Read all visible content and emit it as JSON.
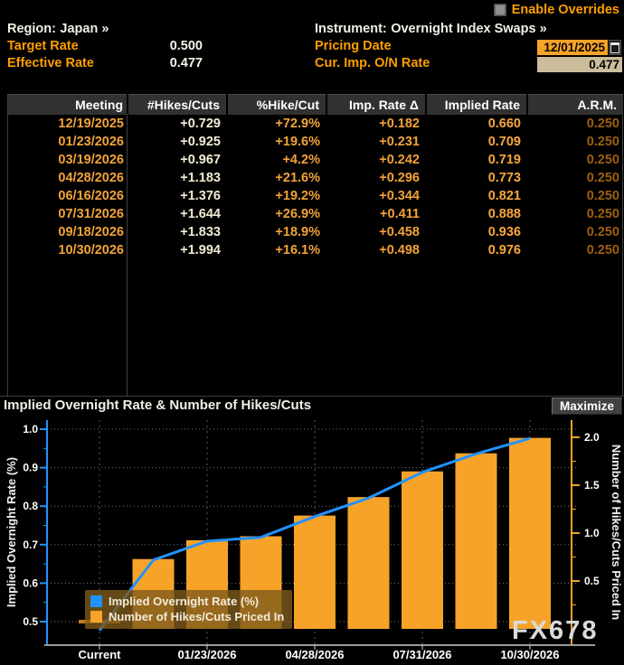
{
  "header": {
    "enable_overrides_label": "Enable Overrides",
    "region_label": "Region:",
    "region_value": "Japan »",
    "instrument_label": "Instrument:",
    "instrument_value": "Overnight Index Swaps »",
    "target_rate_label": "Target Rate",
    "target_rate_value": "0.500",
    "effective_rate_label": "Effective Rate",
    "effective_rate_value": "0.477",
    "pricing_date_label": "Pricing Date",
    "pricing_date_value": "12/01/2025",
    "cur_imp_label": "Cur. Imp. O/N Rate",
    "cur_imp_value": "0.477"
  },
  "table": {
    "columns": [
      "Meeting",
      "#Hikes/Cuts",
      "%Hike/Cut",
      "Imp. Rate Δ",
      "Implied Rate",
      "A.R.M."
    ],
    "rows": [
      [
        "12/19/2025",
        "+0.729",
        "+72.9%",
        "+0.182",
        "0.660",
        "0.250"
      ],
      [
        "01/23/2026",
        "+0.925",
        "+19.6%",
        "+0.231",
        "0.709",
        "0.250"
      ],
      [
        "03/19/2026",
        "+0.967",
        "+4.2%",
        "+0.242",
        "0.719",
        "0.250"
      ],
      [
        "04/28/2026",
        "+1.183",
        "+21.6%",
        "+0.296",
        "0.773",
        "0.250"
      ],
      [
        "06/16/2026",
        "+1.376",
        "+19.2%",
        "+0.344",
        "0.821",
        "0.250"
      ],
      [
        "07/31/2026",
        "+1.644",
        "+26.9%",
        "+0.411",
        "0.888",
        "0.250"
      ],
      [
        "09/18/2026",
        "+1.833",
        "+18.9%",
        "+0.458",
        "0.936",
        "0.250"
      ],
      [
        "10/30/2026",
        "+1.994",
        "+16.1%",
        "+0.498",
        "0.976",
        "0.250"
      ]
    ]
  },
  "chart": {
    "maximize_label": "Maximize"
  },
  "chart_data": {
    "type": "combo",
    "title": "Implied Overnight Rate & Number of Hikes/Cuts",
    "categories": [
      "Current",
      "12/19/2025",
      "01/23/2026",
      "03/19/2026",
      "04/28/2026",
      "06/16/2026",
      "07/31/2026",
      "09/18/2026",
      "10/30/2026"
    ],
    "x_tick_indices": [
      0,
      2,
      4,
      6,
      8
    ],
    "x_tick_labels": [
      "Current",
      "01/23/2026",
      "04/28/2026",
      "07/31/2026",
      "10/30/2026"
    ],
    "series": [
      {
        "name": "Implied Overnight Rate (%)",
        "type": "line",
        "axis": "left",
        "color": "#2391ff",
        "values": [
          0.477,
          0.66,
          0.709,
          0.719,
          0.773,
          0.821,
          0.888,
          0.936,
          0.976
        ]
      },
      {
        "name": "Number of Hikes/Cuts Priced In",
        "type": "bar",
        "axis": "right",
        "color": "#f7a329",
        "values": [
          null,
          0.729,
          0.925,
          0.967,
          1.183,
          1.376,
          1.644,
          1.833,
          1.994
        ]
      }
    ],
    "current_marker": {
      "category_index": 0,
      "axis": "left",
      "value": 0.5,
      "color": "#c27e18"
    },
    "left_axis": {
      "title": "Implied Overnight Rate (%)",
      "ticks": [
        0.5,
        0.6,
        0.7,
        0.8,
        0.9,
        1.0
      ],
      "minor_step": 0.05,
      "color": "#2391ff"
    },
    "right_axis": {
      "title": "Number of Hikes/Cuts Priced In",
      "ticks": [
        0.5,
        1.0,
        1.5,
        2.0
      ],
      "minor_step": 0.25,
      "color": "#f7a329"
    },
    "grid": true,
    "legend_position": "lower-left",
    "watermark": "FX678"
  }
}
